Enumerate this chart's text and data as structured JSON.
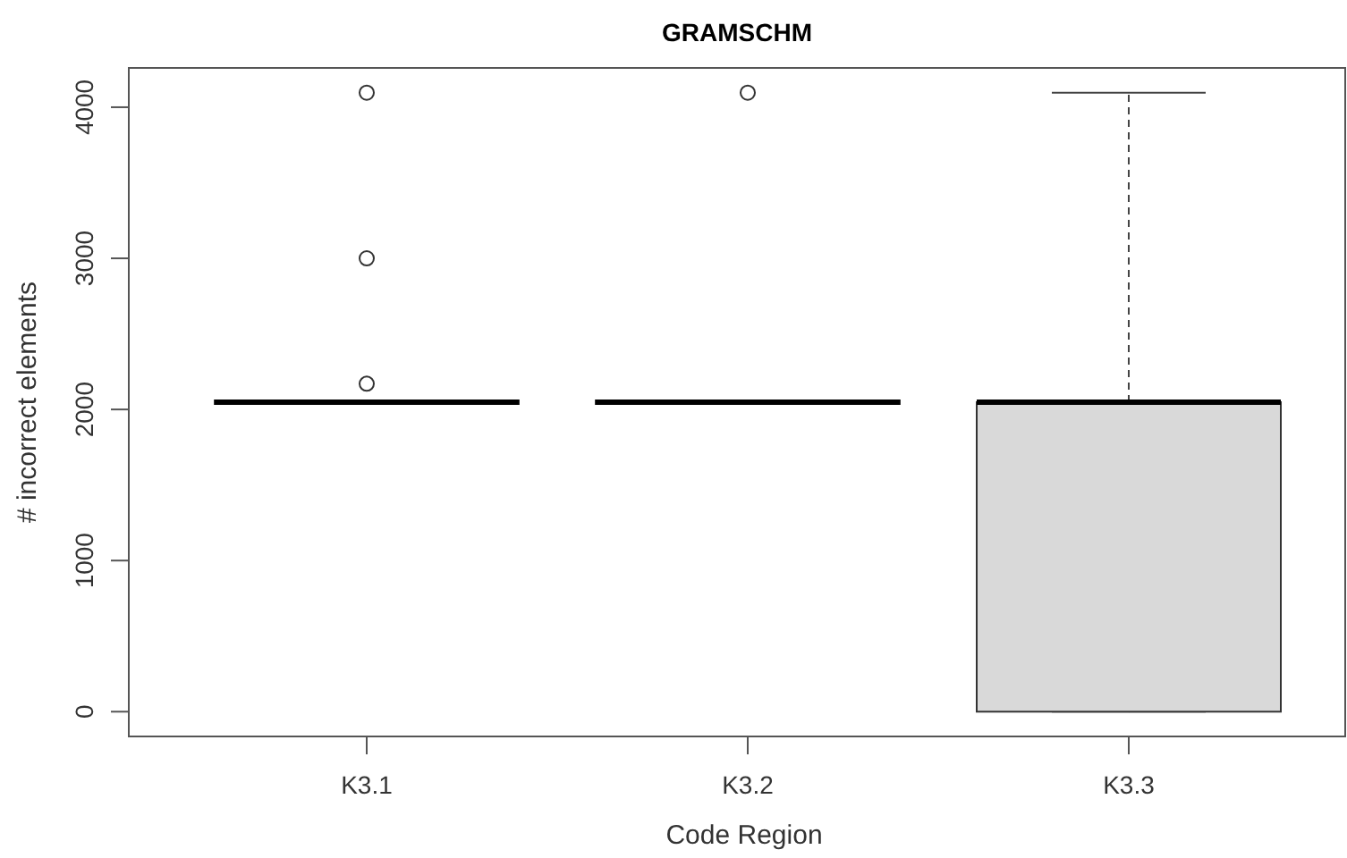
{
  "chart_data": {
    "type": "box",
    "title": "GRAMSCHM",
    "xlabel": "Code Region",
    "ylabel": "# incorrect elements",
    "categories": [
      "K3.1",
      "K3.2",
      "K3.3"
    ],
    "color": "#d9d9d9",
    "ylim": [
      -164,
      4260
    ],
    "yticks": [
      0,
      1000,
      2000,
      3000,
      4000
    ],
    "boxes": [
      {
        "low": 2048,
        "q1": 2048,
        "median": 2048,
        "q3": 2048,
        "high": 2048,
        "outliers": [
          2170,
          3000,
          4096
        ]
      },
      {
        "low": 2048,
        "q1": 2048,
        "median": 2048,
        "q3": 2048,
        "high": 2048,
        "outliers": [
          4096
        ]
      },
      {
        "low": 0,
        "q1": 0,
        "median": 2048,
        "q3": 2048,
        "high": 4096
      }
    ]
  }
}
